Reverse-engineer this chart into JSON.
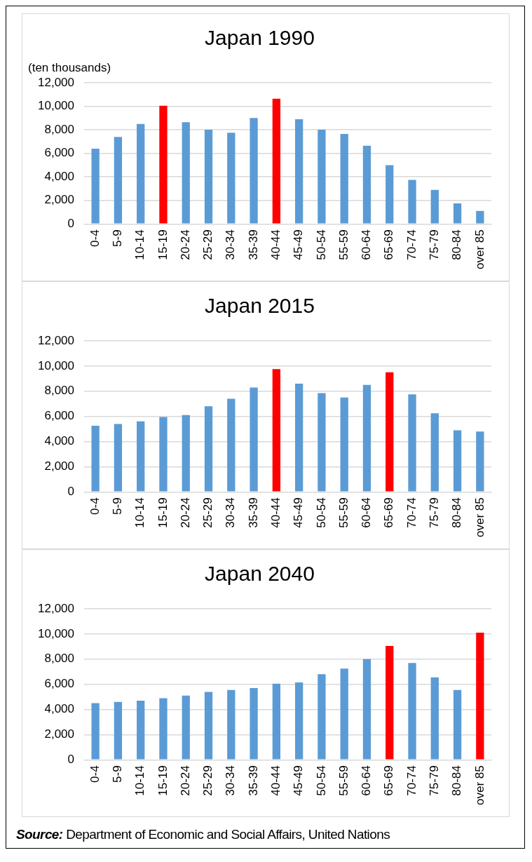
{
  "chart_data": [
    {
      "type": "bar",
      "title": "Japan 1990",
      "ylabel": "(ten thousands)",
      "categories": [
        "0-4",
        "5-9",
        "10-14",
        "15-19",
        "20-24",
        "25-29",
        "30-34",
        "35-39",
        "40-44",
        "45-49",
        "50-54",
        "55-59",
        "60-64",
        "65-69",
        "70-74",
        "75-79",
        "80-84",
        "over 85"
      ],
      "values": [
        6400,
        7400,
        8500,
        10050,
        8650,
        8000,
        7750,
        9000,
        10650,
        8900,
        8000,
        7650,
        6650,
        5000,
        3750,
        2900,
        1750,
        1100
      ],
      "colors": [
        "#5b9bd5",
        "#5b9bd5",
        "#5b9bd5",
        "#ff0000",
        "#5b9bd5",
        "#5b9bd5",
        "#5b9bd5",
        "#5b9bd5",
        "#ff0000",
        "#5b9bd5",
        "#5b9bd5",
        "#5b9bd5",
        "#5b9bd5",
        "#5b9bd5",
        "#5b9bd5",
        "#5b9bd5",
        "#5b9bd5",
        "#5b9bd5"
      ],
      "ylim": [
        0,
        12000
      ],
      "yticks": [
        {
          "value": 0,
          "label": "0"
        },
        {
          "value": 2000,
          "label": "2,000"
        },
        {
          "value": 4000,
          "label": "4,000"
        },
        {
          "value": 6000,
          "label": "6,000"
        },
        {
          "value": 8000,
          "label": "8,000"
        },
        {
          "value": 10000,
          "label": "10,000"
        },
        {
          "value": 12000,
          "label": "12,000"
        }
      ],
      "grid": "y",
      "legend": false
    },
    {
      "type": "bar",
      "title": "Japan 2015",
      "categories": [
        "0-4",
        "5-9",
        "10-14",
        "15-19",
        "20-24",
        "25-29",
        "30-34",
        "35-39",
        "40-44",
        "45-49",
        "50-54",
        "55-59",
        "60-64",
        "65-69",
        "70-74",
        "75-79",
        "80-84",
        "over 85"
      ],
      "values": [
        5250,
        5400,
        5600,
        5950,
        6100,
        6800,
        7400,
        8300,
        9750,
        8600,
        7850,
        7500,
        8500,
        9500,
        7750,
        6250,
        4900,
        4800
      ],
      "colors": [
        "#5b9bd5",
        "#5b9bd5",
        "#5b9bd5",
        "#5b9bd5",
        "#5b9bd5",
        "#5b9bd5",
        "#5b9bd5",
        "#5b9bd5",
        "#ff0000",
        "#5b9bd5",
        "#5b9bd5",
        "#5b9bd5",
        "#5b9bd5",
        "#ff0000",
        "#5b9bd5",
        "#5b9bd5",
        "#5b9bd5",
        "#5b9bd5"
      ],
      "ylim": [
        0,
        12000
      ],
      "yticks": [
        {
          "value": 0,
          "label": "0"
        },
        {
          "value": 2000,
          "label": "2,000"
        },
        {
          "value": 4000,
          "label": "4,000"
        },
        {
          "value": 6000,
          "label": "6,000"
        },
        {
          "value": 8000,
          "label": "8,000"
        },
        {
          "value": 10000,
          "label": "10,000"
        },
        {
          "value": 12000,
          "label": "12,000"
        }
      ],
      "grid": "y",
      "legend": false
    },
    {
      "type": "bar",
      "title": "Japan 2040",
      "categories": [
        "0-4",
        "5-9",
        "10-14",
        "15-19",
        "20-24",
        "25-29",
        "30-34",
        "35-39",
        "40-44",
        "45-49",
        "50-54",
        "55-59",
        "60-64",
        "65-69",
        "70-74",
        "75-79",
        "80-84",
        "over 85"
      ],
      "values": [
        4500,
        4600,
        4700,
        4900,
        5100,
        5400,
        5550,
        5700,
        6050,
        6150,
        6800,
        7250,
        8000,
        9050,
        7700,
        6550,
        5550,
        10100
      ],
      "colors": [
        "#5b9bd5",
        "#5b9bd5",
        "#5b9bd5",
        "#5b9bd5",
        "#5b9bd5",
        "#5b9bd5",
        "#5b9bd5",
        "#5b9bd5",
        "#5b9bd5",
        "#5b9bd5",
        "#5b9bd5",
        "#5b9bd5",
        "#5b9bd5",
        "#ff0000",
        "#5b9bd5",
        "#5b9bd5",
        "#5b9bd5",
        "#ff0000"
      ],
      "ylim": [
        0,
        12000
      ],
      "yticks": [
        {
          "value": 0,
          "label": "0"
        },
        {
          "value": 2000,
          "label": "2,000"
        },
        {
          "value": 4000,
          "label": "4,000"
        },
        {
          "value": 6000,
          "label": "6,000"
        },
        {
          "value": 8000,
          "label": "8,000"
        },
        {
          "value": 10000,
          "label": "10,000"
        },
        {
          "value": 12000,
          "label": "12,000"
        }
      ],
      "grid": "y",
      "legend": false,
      "annotations": [
        "Source: Department of Economic and Social Affairs, United Nations"
      ]
    }
  ]
}
